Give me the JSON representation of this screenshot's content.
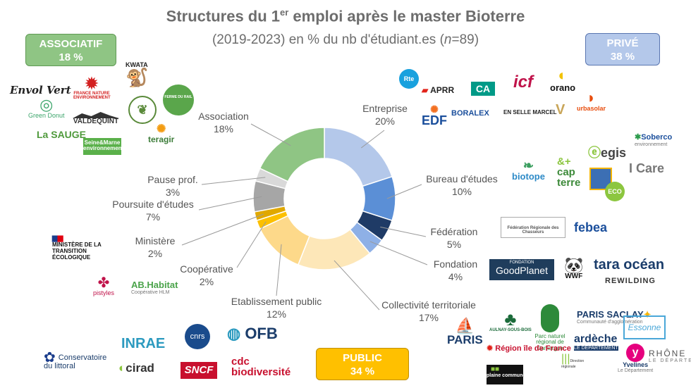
{
  "title_main": "Structures du 1",
  "title_sup": "er",
  "title_rest": " emploi après le master Bioterre",
  "subtitle_prefix": "(2019-2023)  en % du nb d'étudiant.es (",
  "subtitle_n": "n",
  "subtitle_suffix": "=89)",
  "badges": {
    "associatif": {
      "name": "ASSOCIATIF",
      "value": "18 %"
    },
    "prive": {
      "name": "PRIVÉ",
      "value": "38 %"
    },
    "public": {
      "name": "PUBLIC",
      "value": "34 %"
    }
  },
  "chart_data": {
    "type": "pie",
    "hole": true,
    "categories": [
      "Entreprise",
      "Bureau d'études",
      "Fédération",
      "Fondation",
      "Collectivité territoriale",
      "Etablissement public",
      "Coopérative",
      "Ministère",
      "Poursuite d'études",
      "Pause prof.",
      "Association"
    ],
    "values": [
      20,
      10,
      5,
      4,
      17,
      12,
      2,
      2,
      7,
      3,
      18
    ],
    "value_labels": [
      "20%",
      "10%",
      "5%",
      "4%",
      "17%",
      "12%",
      "2%",
      "2%",
      "7%",
      "3%",
      "18%"
    ],
    "colors": [
      "#b4c8ea",
      "#5b8fd6",
      "#1f3b66",
      "#8eb0e6",
      "#fde7b8",
      "#fdd98a",
      "#fcc000",
      "#e0a800",
      "#a6a6a6",
      "#d9d9d9",
      "#8fc584"
    ]
  },
  "logos": {
    "associatif": [
      {
        "id": "envol-vert",
        "text": "Envol Vert"
      },
      {
        "id": "fne",
        "text": "FRANCE NATURE ENVIRONNEMENT"
      },
      {
        "id": "kwata",
        "text": "KWATA"
      },
      {
        "id": "ferme-du-rail",
        "text": "FERME DU RAIL"
      },
      {
        "id": "green-donut",
        "text": "Green Donut"
      },
      {
        "id": "valdequint",
        "text": "VALDEQUINT"
      },
      {
        "id": "la-sauge",
        "text": "La SAUGE"
      },
      {
        "id": "seine-marne",
        "text": "Seine&Marne environnement"
      },
      {
        "id": "teragir",
        "text": "teragir"
      }
    ],
    "prive": [
      {
        "id": "rte",
        "text": "Rte"
      },
      {
        "id": "aprr",
        "text": "APRR"
      },
      {
        "id": "ca",
        "text": "CA"
      },
      {
        "id": "icf",
        "text": "icf"
      },
      {
        "id": "orano",
        "text": "orano"
      },
      {
        "id": "edf",
        "text": "EDF"
      },
      {
        "id": "boralex",
        "text": "BORALEX"
      },
      {
        "id": "en-selle-marcel",
        "text": "EN SELLE MARCEL"
      },
      {
        "id": "urbasolar",
        "text": "urbasolar"
      },
      {
        "id": "soberco",
        "text": "Soberco"
      },
      {
        "id": "egis",
        "text": "egis"
      },
      {
        "id": "biotope",
        "text": "biotope"
      },
      {
        "id": "cap-terre",
        "text": "cap terre"
      },
      {
        "id": "i-care",
        "text": "I Care"
      },
      {
        "id": "eco",
        "text": "ECO"
      }
    ],
    "autres_prive": [
      {
        "id": "fed-chasseurs",
        "text": "Fédération Régionale des Chasseurs"
      },
      {
        "id": "febea",
        "text": "febea"
      },
      {
        "id": "goodplanet",
        "text": "GoodPlanet"
      },
      {
        "id": "wwf",
        "text": "WWF"
      },
      {
        "id": "tara-ocean",
        "text": "tara océan"
      },
      {
        "id": "rewilding",
        "text": "REWILDING"
      }
    ],
    "public": [
      {
        "id": "ministere",
        "text": "MINISTÈRE DE LA TRANSITION ÉCOLOGIQUE"
      },
      {
        "id": "pistyles",
        "text": "pistyles"
      },
      {
        "id": "ab-habitat",
        "text": "AB.Habitat"
      },
      {
        "id": "inrae",
        "text": "INRAE"
      },
      {
        "id": "cnrs",
        "text": "cnrs"
      },
      {
        "id": "ofb",
        "text": "OFB"
      },
      {
        "id": "conservatoire",
        "text": "Conservatoire du littoral"
      },
      {
        "id": "cirad",
        "text": "cirad"
      },
      {
        "id": "sncf",
        "text": "SNCF"
      },
      {
        "id": "cdc",
        "text": "cdc biodiversité"
      },
      {
        "id": "paris",
        "text": "PARIS"
      },
      {
        "id": "aulnay",
        "text": "AULNAY-SOUS-BOIS"
      },
      {
        "id": "camargue",
        "text": "Parc naturel régional de Camargue"
      },
      {
        "id": "paris-saclay",
        "text": "PARIS SACLAY"
      },
      {
        "id": "essonne",
        "text": "Essonne"
      },
      {
        "id": "ardeche",
        "text": "ardèche"
      },
      {
        "id": "yvelines",
        "text": "Yvelines"
      },
      {
        "id": "rhone",
        "text": "RHÔNE"
      },
      {
        "id": "idf",
        "text": "Région île de France"
      },
      {
        "id": "drieat",
        "text": "Direction régionale"
      },
      {
        "id": "plaine-commune",
        "text": "plaine commune"
      }
    ]
  }
}
